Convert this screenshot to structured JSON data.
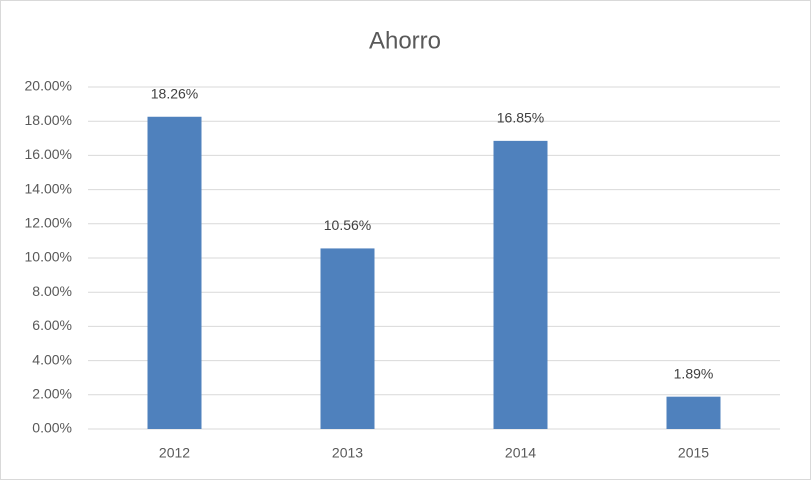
{
  "chart_data": {
    "type": "bar",
    "title": "Ahorro",
    "categories": [
      "2012",
      "2013",
      "2014",
      "2015"
    ],
    "values": [
      18.26,
      10.56,
      16.85,
      1.89
    ],
    "value_labels": [
      "18.26%",
      "10.56%",
      "16.85%",
      "1.89%"
    ],
    "color": "#4f81bd",
    "ylim": [
      0,
      20
    ],
    "yticks": [
      {
        "value": 0,
        "label": "0.00%"
      },
      {
        "value": 2,
        "label": "2.00%"
      },
      {
        "value": 4,
        "label": "4.00%"
      },
      {
        "value": 6,
        "label": "6.00%"
      },
      {
        "value": 8,
        "label": "8.00%"
      },
      {
        "value": 10,
        "label": "10.00%"
      },
      {
        "value": 12,
        "label": "12.00%"
      },
      {
        "value": 14,
        "label": "14.00%"
      },
      {
        "value": 16,
        "label": "16.00%"
      },
      {
        "value": 18,
        "label": "18.00%"
      },
      {
        "value": 20,
        "label": "20.00%"
      }
    ],
    "grid": true
  }
}
